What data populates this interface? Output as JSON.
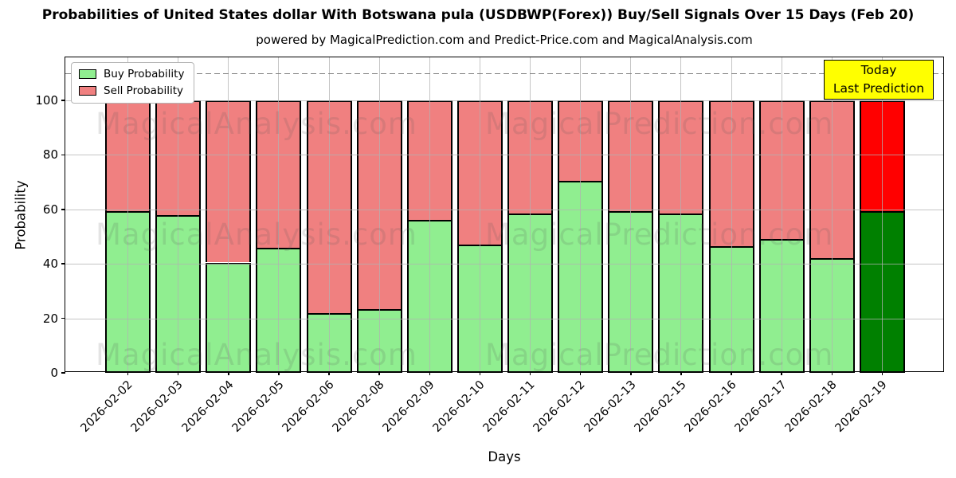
{
  "title": "Probabilities of United States dollar With Botswana pula (USDBWP(Forex)) Buy/Sell Signals Over 15 Days (Feb 20)",
  "subtitle": "powered by MagicalPrediction.com and Predict-Price.com and MagicalAnalysis.com",
  "legend": {
    "items": [
      {
        "label": "Buy Probability",
        "color": "#90ee90"
      },
      {
        "label": "Sell Probability",
        "color": "#f08080"
      }
    ]
  },
  "annotation": {
    "line1": "Today",
    "line2": "Last Prediction",
    "bg_color": "#ffff00"
  },
  "watermarks": {
    "left_text": "MagicalAnalysis.com",
    "right_text": "MagicalPrediction.com"
  },
  "chart_data": {
    "type": "bar",
    "stacked": true,
    "title": "Probabilities of United States dollar With Botswana pula (USDBWP(Forex)) Buy/Sell Signals Over 15 Days (Feb 20)",
    "xlabel": "Days",
    "ylabel": "Probability",
    "categories": [
      "2026-02-02",
      "2026-02-03",
      "2026-02-04",
      "2026-02-05",
      "2026-02-06",
      "2026-02-08",
      "2026-02-09",
      "2026-02-10",
      "2026-02-11",
      "2026-02-12",
      "2026-02-13",
      "2026-02-15",
      "2026-02-16",
      "2026-02-17",
      "2026-02-18",
      "2026-02-19"
    ],
    "series": [
      {
        "name": "Buy Probability",
        "color": "#90ee90",
        "today_color": "#008000",
        "values": [
          59.5,
          58,
          40.5,
          46,
          22,
          23.5,
          56,
          47,
          58.5,
          70.5,
          59.5,
          58.5,
          46.5,
          49,
          42,
          59.5
        ]
      },
      {
        "name": "Sell Probability",
        "color": "#f08080",
        "today_color": "#ff0000",
        "values": [
          40.5,
          42,
          59.5,
          54,
          78,
          76.5,
          44,
          53,
          41.5,
          29.5,
          40.5,
          41.5,
          53.5,
          51,
          58,
          40.5
        ]
      }
    ],
    "stack_total": 100,
    "today_index": 15,
    "yticks": [
      0,
      20,
      40,
      60,
      80,
      100
    ],
    "ylim": [
      0,
      115.8
    ],
    "dashed_line_y": 110,
    "grid": true,
    "legend_position": "upper left",
    "bar_edge_color": "#000000"
  }
}
